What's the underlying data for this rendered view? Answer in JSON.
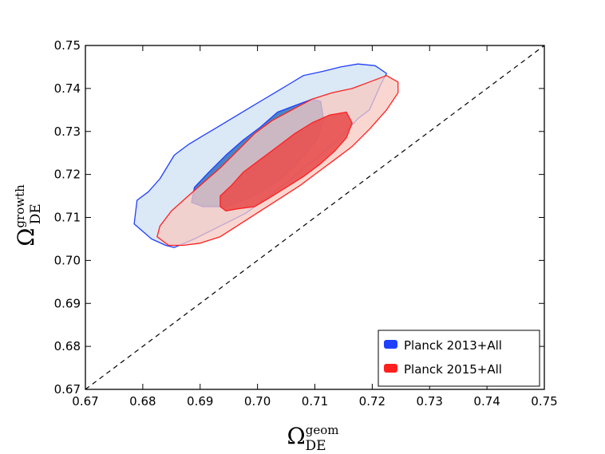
{
  "chart_data": {
    "type": "contour",
    "xlabel": {
      "base": "Ω",
      "sub": "DE",
      "sup": "geom"
    },
    "ylabel": {
      "base": "Ω",
      "sub": "DE",
      "sup": "growth"
    },
    "xlim": [
      0.67,
      0.75
    ],
    "ylim": [
      0.67,
      0.75
    ],
    "xticks": [
      "0.67",
      "0.68",
      "0.69",
      "0.70",
      "0.71",
      "0.72",
      "0.73",
      "0.74",
      "0.75"
    ],
    "yticks": [
      "0.67",
      "0.68",
      "0.69",
      "0.70",
      "0.71",
      "0.72",
      "0.73",
      "0.74",
      "0.75"
    ],
    "reference_line": {
      "style": "dashed",
      "from": [
        0.67,
        0.67
      ],
      "to": [
        0.75,
        0.75
      ]
    },
    "legend_position": "bottom-right",
    "series": [
      {
        "name": "Planck 2013+All",
        "color": "#1f3fff",
        "inner_fill": "#3a78c0",
        "outer_fill": "#cfe0f2",
        "contour_95": [
          [
            0.6785,
            0.7085
          ],
          [
            0.679,
            0.714
          ],
          [
            0.681,
            0.716
          ],
          [
            0.683,
            0.719
          ],
          [
            0.6855,
            0.7245
          ],
          [
            0.688,
            0.727
          ],
          [
            0.6905,
            0.729
          ],
          [
            0.693,
            0.731
          ],
          [
            0.6955,
            0.733
          ],
          [
            0.698,
            0.735
          ],
          [
            0.7005,
            0.737
          ],
          [
            0.703,
            0.739
          ],
          [
            0.7055,
            0.741
          ],
          [
            0.708,
            0.743
          ],
          [
            0.7115,
            0.744
          ],
          [
            0.7145,
            0.745
          ],
          [
            0.7175,
            0.7457
          ],
          [
            0.7205,
            0.7453
          ],
          [
            0.7225,
            0.7435
          ],
          [
            0.7215,
            0.741
          ],
          [
            0.7205,
            0.738
          ],
          [
            0.7195,
            0.735
          ],
          [
            0.7175,
            0.733
          ],
          [
            0.7155,
            0.73
          ],
          [
            0.713,
            0.727
          ],
          [
            0.7105,
            0.724
          ],
          [
            0.708,
            0.7215
          ],
          [
            0.7055,
            0.7185
          ],
          [
            0.703,
            0.716
          ],
          [
            0.7005,
            0.7135
          ],
          [
            0.698,
            0.711
          ],
          [
            0.695,
            0.709
          ],
          [
            0.692,
            0.707
          ],
          [
            0.689,
            0.705
          ],
          [
            0.6855,
            0.703
          ],
          [
            0.684,
            0.7035
          ],
          [
            0.6815,
            0.705
          ]
        ],
        "contour_68": [
          [
            0.6885,
            0.7135
          ],
          [
            0.689,
            0.717
          ],
          [
            0.6915,
            0.7205
          ],
          [
            0.6945,
            0.7245
          ],
          [
            0.6975,
            0.728
          ],
          [
            0.7005,
            0.731
          ],
          [
            0.7035,
            0.7345
          ],
          [
            0.7065,
            0.736
          ],
          [
            0.7095,
            0.7375
          ],
          [
            0.711,
            0.737
          ],
          [
            0.7115,
            0.733
          ],
          [
            0.7105,
            0.7285
          ],
          [
            0.7085,
            0.725
          ],
          [
            0.7065,
            0.722
          ],
          [
            0.7045,
            0.7195
          ],
          [
            0.7025,
            0.7175
          ],
          [
            0.7,
            0.7155
          ],
          [
            0.6975,
            0.714
          ],
          [
            0.6945,
            0.7125
          ],
          [
            0.6905,
            0.7125
          ]
        ]
      },
      {
        "name": "Planck 2015+All",
        "color": "#ff2020",
        "inner_fill": "#e85050",
        "outer_fill": "#f7c9c0",
        "contour_95": [
          [
            0.6825,
            0.7055
          ],
          [
            0.6845,
            0.7035
          ],
          [
            0.687,
            0.7035
          ],
          [
            0.69,
            0.704
          ],
          [
            0.6935,
            0.7055
          ],
          [
            0.697,
            0.7085
          ],
          [
            0.7005,
            0.7115
          ],
          [
            0.704,
            0.7145
          ],
          [
            0.7075,
            0.7175
          ],
          [
            0.7105,
            0.7205
          ],
          [
            0.7135,
            0.7235
          ],
          [
            0.7165,
            0.7265
          ],
          [
            0.7195,
            0.7305
          ],
          [
            0.7225,
            0.735
          ],
          [
            0.7245,
            0.739
          ],
          [
            0.7245,
            0.7415
          ],
          [
            0.7225,
            0.743
          ],
          [
            0.7195,
            0.7415
          ],
          [
            0.7165,
            0.74
          ],
          [
            0.713,
            0.739
          ],
          [
            0.7095,
            0.7375
          ],
          [
            0.706,
            0.735
          ],
          [
            0.7025,
            0.7325
          ],
          [
            0.6995,
            0.7295
          ],
          [
            0.6965,
            0.7255
          ],
          [
            0.6935,
            0.7215
          ],
          [
            0.6905,
            0.718
          ],
          [
            0.6875,
            0.7145
          ],
          [
            0.685,
            0.7115
          ],
          [
            0.683,
            0.708
          ]
        ],
        "contour_68": [
          [
            0.6935,
            0.7125
          ],
          [
            0.6935,
            0.715
          ],
          [
            0.6955,
            0.7175
          ],
          [
            0.6975,
            0.7205
          ],
          [
            0.7005,
            0.7235
          ],
          [
            0.7035,
            0.7265
          ],
          [
            0.7065,
            0.7295
          ],
          [
            0.7095,
            0.732
          ],
          [
            0.7125,
            0.7338
          ],
          [
            0.7155,
            0.7345
          ],
          [
            0.7165,
            0.732
          ],
          [
            0.7155,
            0.7285
          ],
          [
            0.7135,
            0.7255
          ],
          [
            0.711,
            0.7225
          ],
          [
            0.708,
            0.7195
          ],
          [
            0.705,
            0.717
          ],
          [
            0.702,
            0.7145
          ],
          [
            0.6995,
            0.7125
          ],
          [
            0.6965,
            0.712
          ],
          [
            0.6945,
            0.7115
          ]
        ]
      }
    ]
  }
}
